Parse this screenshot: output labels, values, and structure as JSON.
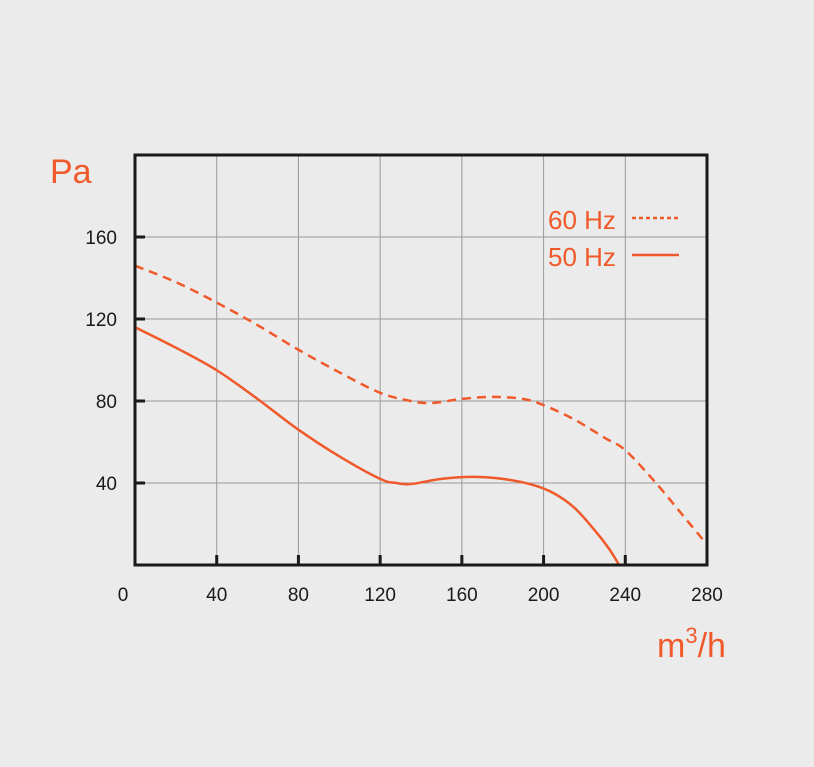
{
  "chart_data": {
    "type": "line",
    "title": "",
    "xlabel": "m3/h",
    "xlabel_base": "m",
    "xlabel_sup": "3",
    "xlabel_rest": "/h",
    "ylabel": "Pa",
    "xlim": [
      0,
      280
    ],
    "ylim": [
      0,
      200
    ],
    "xticks": [
      0,
      40,
      80,
      120,
      160,
      200,
      240,
      280
    ],
    "yticks": [
      40,
      80,
      120,
      160
    ],
    "grid": true,
    "legend_position": "top-right",
    "color": "#f0592a",
    "series": [
      {
        "name": "60 Hz",
        "style": "dashed",
        "x": [
          0,
          20,
          40,
          60,
          80,
          100,
          120,
          135,
          145,
          160,
          175,
          190,
          200,
          215,
          230,
          240,
          255,
          270,
          280
        ],
        "y": [
          146,
          138,
          128,
          117,
          105,
          94,
          84,
          80,
          79,
          81,
          82,
          81,
          78,
          71,
          62,
          56,
          40,
          22,
          10
        ]
      },
      {
        "name": "50 Hz",
        "style": "solid",
        "x": [
          0,
          20,
          40,
          60,
          80,
          100,
          120,
          128,
          135,
          150,
          165,
          180,
          195,
          205,
          215,
          225,
          232,
          237
        ],
        "y": [
          116,
          106,
          95,
          81,
          66,
          53,
          42,
          40,
          39.5,
          42,
          43,
          42,
          39,
          35,
          28,
          17,
          8,
          0
        ]
      }
    ]
  }
}
